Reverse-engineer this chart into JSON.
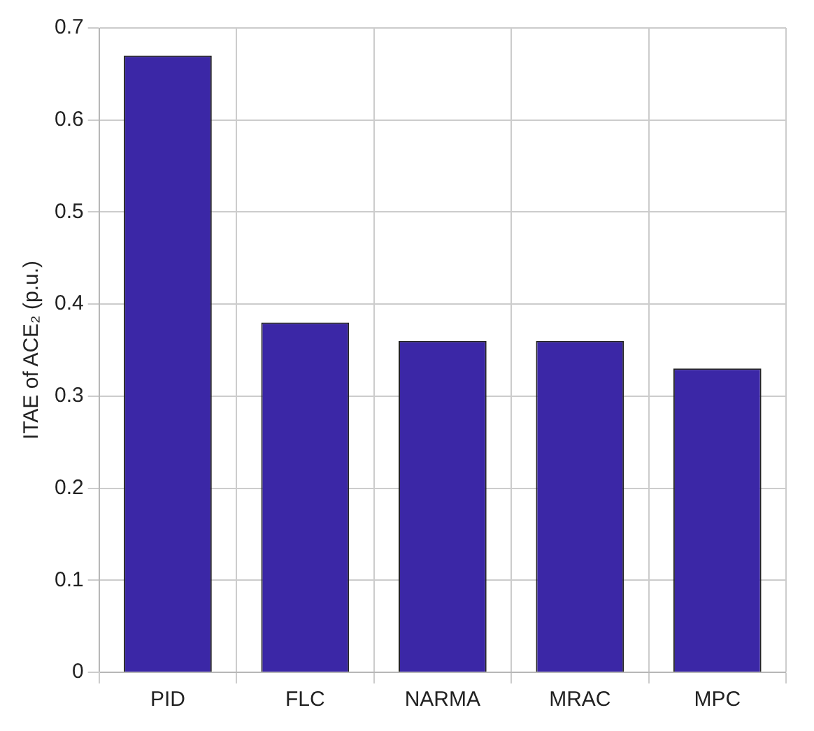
{
  "chart_data": {
    "type": "bar",
    "ylabel": "ITAE of ACE₂ (p.u.)",
    "categories": [
      "PID",
      "FLC",
      "NARMA",
      "MRAC",
      "MPC"
    ],
    "values": [
      0.67,
      0.38,
      0.36,
      0.36,
      0.33
    ],
    "color": "#3b27a6",
    "ylim": [
      0,
      0.7
    ],
    "yticks": [
      0,
      0.1,
      0.2,
      0.3,
      0.4,
      0.5,
      0.6,
      0.7
    ],
    "grid": true
  }
}
